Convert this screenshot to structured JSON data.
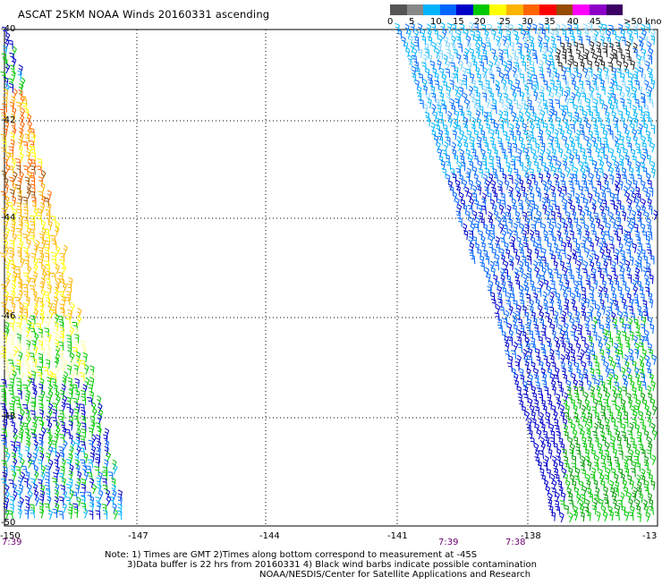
{
  "title": "ASCAT 25KM NOAA Winds 20160331 ascending",
  "legend": {
    "colors": [
      "#555555",
      "#888888",
      "#00b4ff",
      "#0066ff",
      "#0000c8",
      "#00c800",
      "#ffff00",
      "#ffb400",
      "#ff6400",
      "#ff0000",
      "#964b00",
      "#ff00ff",
      "#8c00c8",
      "#3c0064"
    ],
    "labels": [
      "0",
      "5",
      "10",
      "15",
      "20",
      "25",
      "30",
      "35",
      "40",
      "45",
      ">50 knots"
    ]
  },
  "axes": {
    "lon_labels": [
      "-150",
      "-147",
      "-144",
      "-141",
      "-138",
      "-13"
    ],
    "lat_labels": [
      "-40",
      "-42",
      "-44",
      "-46",
      "-48",
      "-50"
    ]
  },
  "time_labels": [
    "7:39",
    "7:39",
    "7:38"
  ],
  "notes": {
    "line1": "Note: 1) Times are GMT 2)Times along bottom correspond to measurement at -45S",
    "line2": "3)Data buffer is 22 hrs from 20160331 4) Black wind barbs indicate possible contamination",
    "line3": "NOAA/NESDIS/Center for Satellite Applications and Research"
  }
}
